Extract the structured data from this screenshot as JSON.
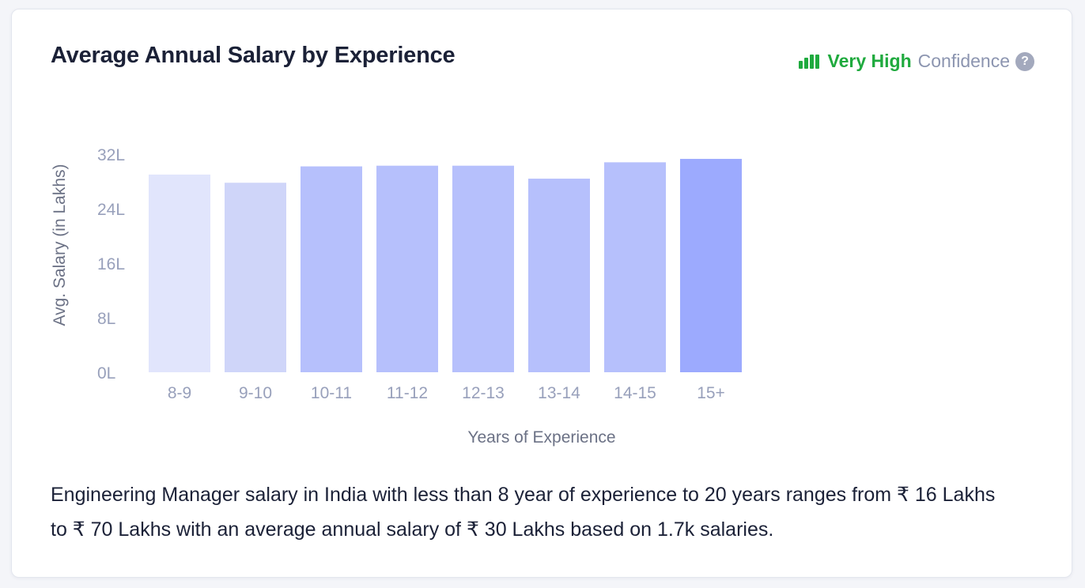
{
  "title": "Average Annual Salary by Experience",
  "confidence": {
    "level": "Very High",
    "label": "Confidence",
    "help_symbol": "?",
    "level_color": "#1faa3e"
  },
  "chart_data": {
    "type": "bar",
    "title": "Average Annual Salary by Experience",
    "xlabel": "Years of Experience",
    "ylabel": "Avg. Salary (in Lakhs)",
    "ylim": [
      0,
      32
    ],
    "y_ticks": [
      0,
      8,
      16,
      24,
      32
    ],
    "y_tick_labels": [
      "0L",
      "8L",
      "16L",
      "24L",
      "32L"
    ],
    "categories": [
      "8-9",
      "9-10",
      "10-11",
      "11-12",
      "12-13",
      "13-14",
      "14-15",
      "15+"
    ],
    "values": [
      29,
      27.8,
      30.2,
      30.3,
      30.3,
      28.4,
      30.8,
      31.3
    ],
    "bar_colors": [
      "#e1e5fc",
      "#cfd5f9",
      "#b6c0fc",
      "#b6c0fc",
      "#b6c0fc",
      "#b6c0fc",
      "#b6c0fc",
      "#9caafe"
    ],
    "grid": false,
    "legend": "none"
  },
  "description": "Engineering Manager salary in India with less than 8 year of experience to 20 years ranges from ₹ 16 Lakhs to ₹ 70 Lakhs with an average annual salary of ₹ 30 Lakhs based on 1.7k salaries."
}
